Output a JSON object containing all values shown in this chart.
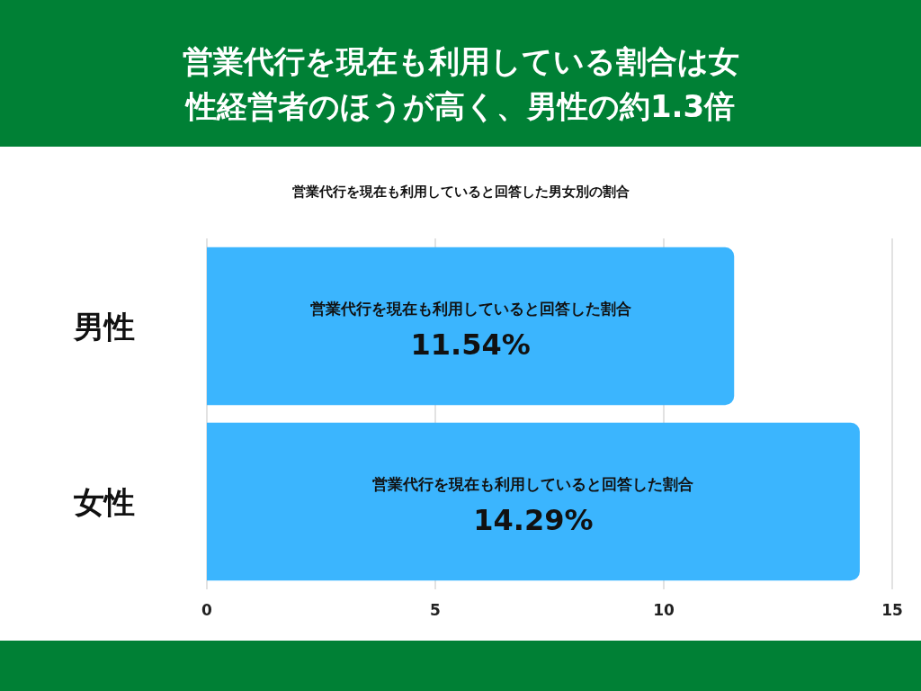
{
  "chart_data": {
    "type": "bar",
    "orientation": "horizontal",
    "title": "営業代行を現在も利用している割合は女性経営者のほうが高く、男性の約1.3倍",
    "subtitle": "営業代行を現在も利用していると回答した男女別の割合",
    "categories": [
      "男性",
      "女性"
    ],
    "values": [
      11.54,
      14.29
    ],
    "color": "#3bb5fe",
    "value_labels": [
      "11.54%",
      "14.29%"
    ],
    "annotations": [
      "営業代行を現在も利用していると回答した割合",
      "営業代行を現在も利用していると回答した割合"
    ],
    "xlim": [
      0,
      15
    ],
    "xticks": [
      0,
      5,
      10,
      15
    ],
    "grid": "x"
  }
}
